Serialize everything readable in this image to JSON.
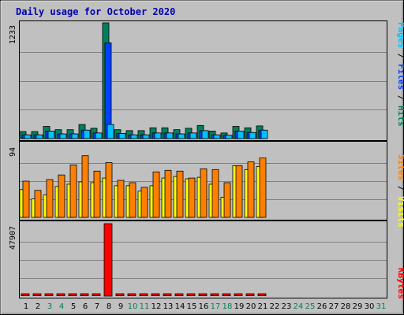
{
  "chart_data": {
    "type": "bar",
    "title": "Daily usage for October 2020",
    "days": [
      "1",
      "2",
      "3",
      "4",
      "5",
      "6",
      "7",
      "8",
      "9",
      "10",
      "11",
      "12",
      "13",
      "14",
      "15",
      "16",
      "17",
      "18",
      "19",
      "20",
      "21",
      "22",
      "23",
      "24",
      "25",
      "26",
      "27",
      "28",
      "29",
      "30",
      "31"
    ],
    "weekend_days": [
      3,
      4,
      10,
      11,
      17,
      18,
      24,
      25,
      31
    ],
    "colors": {
      "hits": "#00805c",
      "files": "#0040ff",
      "pages": "#00c0ff",
      "visits": "#ffff00",
      "sites": "#ff8000",
      "kbytes": "#ff0000",
      "title": "#0000b0",
      "weekend": "#00805c",
      "background": "#c0c0c0"
    },
    "panels": [
      {
        "id": "hits-files-pages",
        "ymax": 1233,
        "ymax_label": "1233",
        "series": [
          {
            "key": "hits",
            "name": "Hits",
            "values": [
              75,
              75,
              130,
              95,
              95,
              150,
              110,
              1233,
              95,
              85,
              85,
              115,
              115,
              95,
              110,
              140,
              80,
              60,
              130,
              115,
              135,
              0,
              0,
              0,
              0,
              0,
              0,
              0,
              0,
              0,
              0
            ]
          },
          {
            "key": "files",
            "name": "Files",
            "values": [
              40,
              40,
              80,
              50,
              50,
              90,
              60,
              1020,
              55,
              40,
              40,
              60,
              60,
              50,
              60,
              85,
              40,
              35,
              80,
              65,
              90,
              0,
              0,
              0,
              0,
              0,
              0,
              0,
              0,
              0,
              0
            ]
          },
          {
            "key": "pages",
            "name": "Pages",
            "values": [
              40,
              40,
              80,
              50,
              50,
              90,
              60,
              150,
              55,
              40,
              40,
              60,
              60,
              50,
              60,
              85,
              40,
              35,
              80,
              65,
              90,
              0,
              0,
              0,
              0,
              0,
              0,
              0,
              0,
              0,
              0
            ]
          }
        ]
      },
      {
        "id": "visits-sites",
        "ymax": 94,
        "ymax_label": "94",
        "series": [
          {
            "key": "visits",
            "name": "Visits",
            "values": [
              36,
              24,
              29,
              40,
              43,
              46,
              45,
              51,
              41,
              41,
              34,
              41,
              51,
              53,
              50,
              52,
              43,
              26,
              67,
              62,
              66,
              0,
              0,
              0,
              0,
              0,
              0,
              0,
              0,
              0,
              0
            ]
          },
          {
            "key": "sites",
            "name": "Sites",
            "values": [
              47,
              35,
              49,
              55,
              68,
              80,
              60,
              71,
              48,
              45,
              39,
              59,
              61,
              60,
              51,
              63,
              62,
              45,
              67,
              72,
              77,
              0,
              0,
              0,
              0,
              0,
              0,
              0,
              0,
              0,
              0
            ]
          }
        ]
      },
      {
        "id": "kbytes",
        "ymax": 47907,
        "ymax_label": "47907",
        "series": [
          {
            "key": "kbytes",
            "name": "KBytes",
            "values": [
              300,
              300,
              300,
              300,
              300,
              300,
              300,
              47907,
              300,
              300,
              300,
              300,
              300,
              300,
              300,
              300,
              300,
              300,
              300,
              300,
              300,
              0,
              0,
              0,
              0,
              0,
              0,
              0,
              0,
              0,
              0
            ]
          }
        ]
      }
    ],
    "right_labels": {
      "top": [
        {
          "text": "Pages",
          "key": "pages"
        },
        {
          "text": " / ",
          "key": "sep"
        },
        {
          "text": "Files",
          "key": "files"
        },
        {
          "text": " / ",
          "key": "sep"
        },
        {
          "text": "Hits",
          "key": "hits"
        }
      ],
      "middle": [
        {
          "text": "Sites",
          "key": "sites"
        },
        {
          "text": " / ",
          "key": "sep"
        },
        {
          "text": "Visits",
          "key": "visits"
        }
      ],
      "bottom": [
        {
          "text": "KBytes",
          "key": "kbytes"
        }
      ]
    },
    "grid": true
  }
}
